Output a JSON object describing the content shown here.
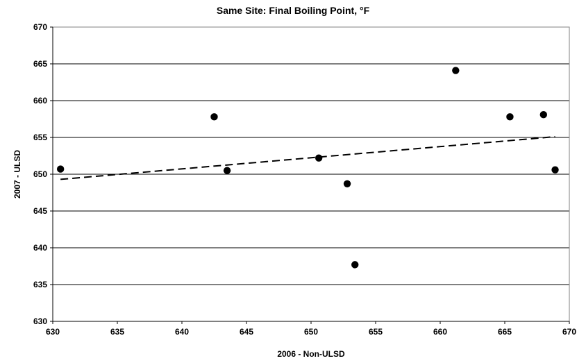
{
  "chart_data": {
    "type": "scatter",
    "title": "Same Site:  Final Boiling Point, °F",
    "xlabel": "2006 - Non-ULSD",
    "ylabel": "2007 - ULSD",
    "xlim": [
      630,
      670
    ],
    "ylim": [
      630,
      670
    ],
    "x_ticks": [
      630,
      635,
      640,
      645,
      650,
      655,
      660,
      665,
      670
    ],
    "y_ticks": [
      630,
      635,
      640,
      645,
      650,
      655,
      660,
      665,
      670
    ],
    "grid": "horizontal",
    "legend": "none",
    "series": [
      {
        "x": [
          630.6,
          642.5,
          643.5,
          650.6,
          652.8,
          653.4,
          661.2,
          665.4,
          668.0,
          668.9
        ],
        "y": [
          650.7,
          657.8,
          650.5,
          652.2,
          648.7,
          637.7,
          664.1,
          657.8,
          658.1,
          650.6
        ],
        "marker": "filled-circle",
        "color": "#000000"
      }
    ],
    "trendline": {
      "type": "linear",
      "style": "dashed",
      "color": "#000000",
      "x": [
        630.6,
        668.9
      ],
      "y": [
        649.3,
        655.1
      ]
    }
  }
}
